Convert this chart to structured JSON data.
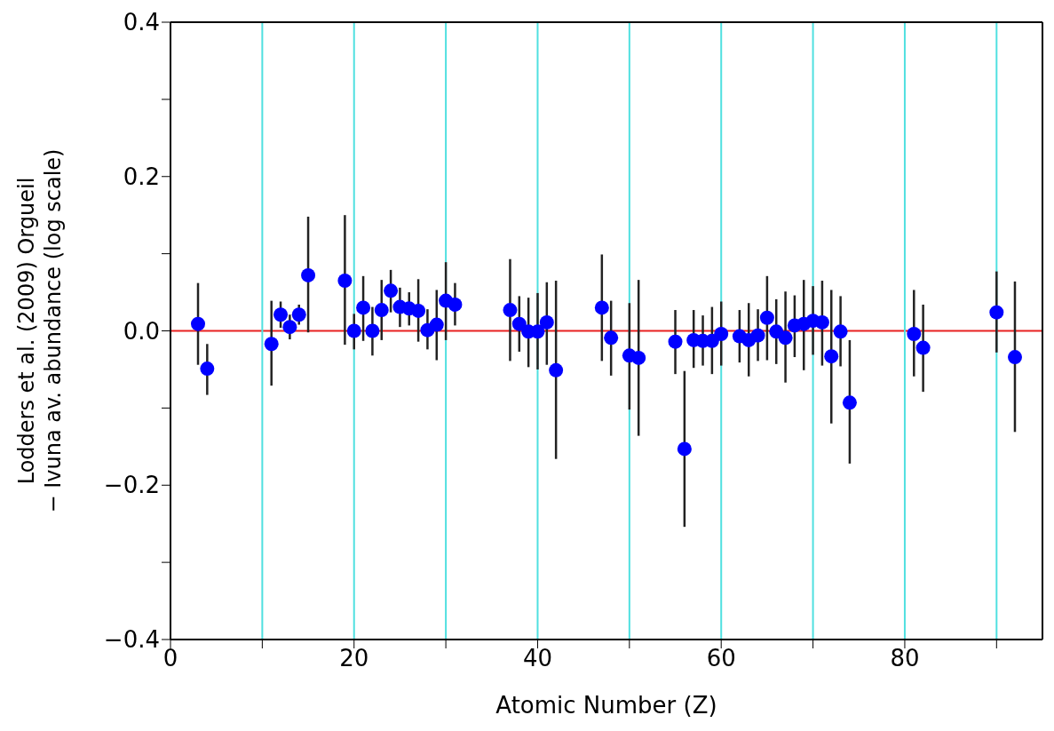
{
  "chart_data": {
    "type": "scatter",
    "xlabel": "Atomic Number (Z)",
    "ylabel": "Lodders et al. (2009) Orgueil\n− Ivuna av. abundance (log scale)",
    "x": [
      3,
      4,
      11,
      12,
      13,
      14,
      15,
      19,
      20,
      21,
      22,
      23,
      24,
      25,
      26,
      27,
      28,
      29,
      30,
      31,
      37,
      38,
      39,
      40,
      41,
      42,
      47,
      48,
      50,
      51,
      55,
      56,
      57,
      58,
      59,
      60,
      62,
      63,
      64,
      65,
      66,
      67,
      68,
      69,
      70,
      71,
      72,
      73,
      74,
      81,
      82,
      90,
      92
    ],
    "series": [
      {
        "color": "#0000ff",
        "values": [
          0.009,
          -0.049,
          -0.017,
          0.021,
          0.005,
          0.021,
          0.072,
          0.065,
          0.0,
          0.03,
          0.0,
          0.027,
          0.052,
          0.031,
          0.029,
          0.026,
          0.001,
          0.008,
          0.039,
          0.034,
          0.027,
          0.009,
          -0.001,
          -0.001,
          0.011,
          -0.051,
          0.03,
          -0.009,
          -0.032,
          -0.035,
          -0.014,
          -0.153,
          -0.012,
          -0.013,
          -0.013,
          -0.004,
          -0.007,
          -0.012,
          -0.006,
          0.017,
          -0.001,
          -0.009,
          0.007,
          0.009,
          0.013,
          0.011,
          -0.033,
          -0.001,
          -0.093,
          -0.004,
          -0.022,
          0.024,
          -0.034
        ],
        "errors": [
          [
            -0.044,
            0.062
          ],
          [
            -0.083,
            -0.017
          ],
          [
            -0.071,
            0.039
          ],
          [
            0.004,
            0.038
          ],
          [
            -0.011,
            0.021
          ],
          [
            0.008,
            0.034
          ],
          [
            -0.002,
            0.148
          ],
          [
            -0.018,
            0.15
          ],
          [
            -0.024,
            0.022
          ],
          [
            -0.013,
            0.071
          ],
          [
            -0.032,
            0.031
          ],
          [
            -0.012,
            0.066
          ],
          [
            0.024,
            0.079
          ],
          [
            0.005,
            0.056
          ],
          [
            0.007,
            0.05
          ],
          [
            -0.014,
            0.067
          ],
          [
            -0.024,
            0.028
          ],
          [
            -0.038,
            0.053
          ],
          [
            -0.012,
            0.089
          ],
          [
            0.007,
            0.062
          ],
          [
            -0.039,
            0.093
          ],
          [
            -0.027,
            0.045
          ],
          [
            -0.047,
            0.043
          ],
          [
            -0.05,
            0.049
          ],
          [
            -0.044,
            0.063
          ],
          [
            -0.166,
            0.065
          ],
          [
            -0.039,
            0.099
          ],
          [
            -0.058,
            0.039
          ],
          [
            -0.102,
            0.036
          ],
          [
            -0.136,
            0.066
          ],
          [
            -0.056,
            0.027
          ],
          [
            -0.254,
            -0.052
          ],
          [
            -0.048,
            0.027
          ],
          [
            -0.045,
            0.02
          ],
          [
            -0.056,
            0.031
          ],
          [
            -0.045,
            0.038
          ],
          [
            -0.041,
            0.027
          ],
          [
            -0.059,
            0.036
          ],
          [
            -0.039,
            0.028
          ],
          [
            -0.038,
            0.071
          ],
          [
            -0.043,
            0.041
          ],
          [
            -0.067,
            0.051
          ],
          [
            -0.034,
            0.046
          ],
          [
            -0.051,
            0.066
          ],
          [
            -0.031,
            0.058
          ],
          [
            -0.045,
            0.065
          ],
          [
            -0.12,
            0.053
          ],
          [
            -0.046,
            0.045
          ],
          [
            -0.172,
            -0.012
          ],
          [
            -0.059,
            0.053
          ],
          [
            -0.079,
            0.034
          ],
          [
            -0.028,
            0.077
          ],
          [
            -0.131,
            0.064
          ]
        ]
      }
    ],
    "xlim": [
      0,
      95
    ],
    "xticks": [
      0,
      {
        "value": 10,
        "label": null
      },
      20,
      {
        "value": 30,
        "label": null
      },
      40,
      {
        "value": 50,
        "label": null
      },
      60,
      {
        "value": 70,
        "label": null
      },
      80,
      {
        "value": 90,
        "label": null
      }
    ],
    "ylim": [
      -0.4,
      0.4
    ],
    "yticks": [
      {
        "value": -0.4,
        "label": "−0.4"
      },
      {
        "value": -0.3,
        "label": null
      },
      {
        "value": -0.2,
        "label": "−0.2"
      },
      {
        "value": -0.1,
        "label": null
      },
      {
        "value": 0,
        "label": "0.0"
      },
      {
        "value": 0.1,
        "label": null
      },
      0.2,
      {
        "value": 0.3,
        "label": null
      },
      0.4
    ],
    "ref_lines": [
      {
        "axis": "y",
        "value": 0,
        "color": "#e82020"
      },
      {
        "axis": "x",
        "value": 10,
        "color": "#50e0e0"
      },
      {
        "axis": "x",
        "value": 20,
        "color": "#50e0e0"
      },
      {
        "axis": "x",
        "value": 30,
        "color": "#50e0e0"
      },
      {
        "axis": "x",
        "value": 40,
        "color": "#50e0e0"
      },
      {
        "axis": "x",
        "value": 50,
        "color": "#50e0e0"
      },
      {
        "axis": "x",
        "value": 60,
        "color": "#50e0e0"
      },
      {
        "axis": "x",
        "value": 70,
        "color": "#50e0e0"
      },
      {
        "axis": "x",
        "value": 80,
        "color": "#50e0e0"
      },
      {
        "axis": "x",
        "value": 90,
        "color": "#50e0e0"
      }
    ],
    "marker": "circle"
  }
}
